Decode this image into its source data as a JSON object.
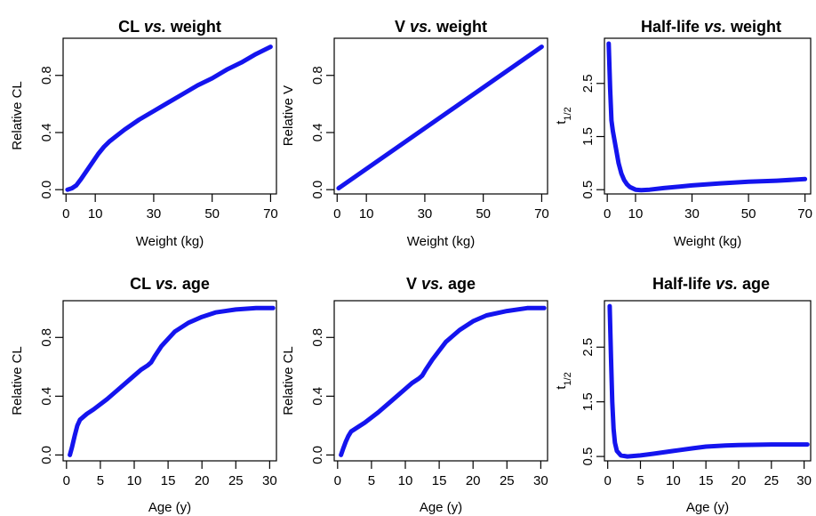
{
  "colors": {
    "curve": "#1414ee"
  },
  "chart_data": [
    {
      "id": "p1",
      "type": "line",
      "title": "CL vs. weight",
      "title_main": "CL ",
      "title_italic": "vs.",
      "title_tail": " weight",
      "xlabel": "Weight (kg)",
      "ylabel": "Relative CL",
      "ylabel_sub": "",
      "xlim": [
        -1,
        72
      ],
      "ylim": [
        -0.03,
        1.06
      ],
      "xticks": [
        0,
        10,
        30,
        50,
        70
      ],
      "yticks": [
        0.0,
        0.4,
        0.8
      ],
      "xtick_labels": [
        "0",
        "10",
        "30",
        "50",
        "70"
      ],
      "ytick_labels": [
        "0.0",
        "0.4",
        "0.8"
      ],
      "series": [
        {
          "x": [
            0.5,
            2,
            3.5,
            5,
            7,
            9,
            11,
            13,
            15,
            20,
            25,
            30,
            35,
            40,
            45,
            50,
            55,
            60,
            65,
            70
          ],
          "y": [
            0.0,
            0.01,
            0.03,
            0.07,
            0.13,
            0.19,
            0.25,
            0.3,
            0.34,
            0.42,
            0.49,
            0.55,
            0.61,
            0.67,
            0.73,
            0.78,
            0.84,
            0.89,
            0.95,
            1.0
          ]
        }
      ]
    },
    {
      "id": "p2",
      "type": "line",
      "title": "V vs. weight",
      "title_main": "V ",
      "title_italic": "vs.",
      "title_tail": " weight",
      "xlabel": "Weight (kg)",
      "ylabel": "Relative V",
      "ylabel_sub": "",
      "xlim": [
        -1,
        72
      ],
      "ylim": [
        -0.03,
        1.06
      ],
      "xticks": [
        0,
        10,
        30,
        50,
        70
      ],
      "yticks": [
        0.0,
        0.4,
        0.8
      ],
      "xtick_labels": [
        "0",
        "10",
        "30",
        "50",
        "70"
      ],
      "ytick_labels": [
        "0.0",
        "0.4",
        "0.8"
      ],
      "series": [
        {
          "x": [
            0.5,
            70
          ],
          "y": [
            0.01,
            1.0
          ]
        }
      ]
    },
    {
      "id": "p3",
      "type": "line",
      "title": "Half-life vs. weight",
      "title_main": "Half-life ",
      "title_italic": "vs.",
      "title_tail": " weight",
      "xlabel": "Weight (kg)",
      "ylabel": "t",
      "ylabel_sub": "1/2",
      "xlim": [
        -1,
        72
      ],
      "ylim": [
        0.42,
        3.35
      ],
      "xticks": [
        0,
        10,
        30,
        50,
        70
      ],
      "yticks": [
        0.5,
        1.5,
        2.5
      ],
      "xtick_labels": [
        "0",
        "10",
        "30",
        "50",
        "70"
      ],
      "ytick_labels": [
        "0.5",
        "1.5",
        "2.5"
      ],
      "series": [
        {
          "x": [
            0.5,
            1,
            1.5,
            2,
            3,
            4,
            5,
            6,
            7,
            8,
            10,
            12,
            15,
            20,
            30,
            40,
            50,
            60,
            70
          ],
          "y": [
            3.25,
            2.4,
            1.8,
            1.6,
            1.3,
            1.0,
            0.8,
            0.68,
            0.6,
            0.55,
            0.5,
            0.49,
            0.5,
            0.53,
            0.58,
            0.62,
            0.65,
            0.67,
            0.7
          ]
        }
      ]
    },
    {
      "id": "p4",
      "type": "line",
      "title": "CL vs. age",
      "title_main": "CL ",
      "title_italic": "vs.",
      "title_tail": " age",
      "xlabel": "Age (y)",
      "ylabel": "Relative CL",
      "ylabel_sub": "",
      "xlim": [
        -0.5,
        31
      ],
      "ylim": [
        -0.04,
        1.05
      ],
      "xticks": [
        0,
        5,
        10,
        15,
        20,
        25,
        30
      ],
      "yticks": [
        0.0,
        0.4,
        0.8
      ],
      "xtick_labels": [
        "0",
        "5",
        "10",
        "15",
        "20",
        "25",
        "30"
      ],
      "ytick_labels": [
        "0.0",
        "0.4",
        "0.8"
      ],
      "series": [
        {
          "x": [
            0.5,
            0.8,
            1.2,
            1.6,
            2,
            3,
            4,
            6,
            8,
            10,
            11,
            12,
            12.5,
            13,
            14,
            15,
            16,
            18,
            20,
            22,
            25,
            28,
            30.5
          ],
          "y": [
            0.0,
            0.05,
            0.13,
            0.2,
            0.24,
            0.28,
            0.31,
            0.38,
            0.46,
            0.54,
            0.58,
            0.61,
            0.63,
            0.67,
            0.74,
            0.79,
            0.84,
            0.9,
            0.94,
            0.97,
            0.99,
            1.0,
            1.0
          ]
        }
      ]
    },
    {
      "id": "p5",
      "type": "line",
      "title": "V vs. age",
      "title_main": "V ",
      "title_italic": "vs.",
      "title_tail": " age",
      "xlabel": "Age (y)",
      "ylabel": "Relative CL",
      "ylabel_sub": "",
      "xlim": [
        -0.5,
        31
      ],
      "ylim": [
        -0.04,
        1.05
      ],
      "xticks": [
        0,
        5,
        10,
        15,
        20,
        25,
        30
      ],
      "yticks": [
        0.0,
        0.4,
        0.8
      ],
      "xtick_labels": [
        "0",
        "5",
        "10",
        "15",
        "20",
        "25",
        "30"
      ],
      "ytick_labels": [
        "0.0",
        "0.4",
        "0.8"
      ],
      "series": [
        {
          "x": [
            0.5,
            0.8,
            1.2,
            1.6,
            2,
            3,
            4,
            6,
            8,
            10,
            11,
            12,
            12.5,
            13,
            14,
            15,
            16,
            18,
            20,
            22,
            25,
            28,
            30.5
          ],
          "y": [
            0.0,
            0.04,
            0.09,
            0.13,
            0.16,
            0.19,
            0.22,
            0.29,
            0.37,
            0.45,
            0.49,
            0.52,
            0.54,
            0.58,
            0.65,
            0.71,
            0.77,
            0.85,
            0.91,
            0.95,
            0.98,
            1.0,
            1.0
          ]
        }
      ]
    },
    {
      "id": "p6",
      "type": "line",
      "title": "Half-life vs. age",
      "title_main": "Half-life ",
      "title_italic": "vs.",
      "title_tail": " age",
      "xlabel": "Age (y)",
      "ylabel": "t",
      "ylabel_sub": "1/2",
      "xlim": [
        -0.5,
        31
      ],
      "ylim": [
        0.42,
        3.35
      ],
      "xticks": [
        0,
        5,
        10,
        15,
        20,
        25,
        30
      ],
      "yticks": [
        0.5,
        1.5,
        2.5
      ],
      "xtick_labels": [
        "0",
        "5",
        "10",
        "15",
        "20",
        "25",
        "30"
      ],
      "ytick_labels": [
        "0.5",
        "1.5",
        "2.5"
      ],
      "series": [
        {
          "x": [
            0.3,
            0.5,
            0.7,
            0.9,
            1.1,
            1.4,
            2,
            3,
            4,
            5,
            7,
            10,
            13,
            15,
            18,
            20,
            25,
            30.5
          ],
          "y": [
            3.25,
            2.3,
            1.5,
            1.0,
            0.75,
            0.6,
            0.52,
            0.5,
            0.51,
            0.52,
            0.55,
            0.6,
            0.65,
            0.68,
            0.7,
            0.71,
            0.72,
            0.72
          ]
        }
      ]
    }
  ]
}
